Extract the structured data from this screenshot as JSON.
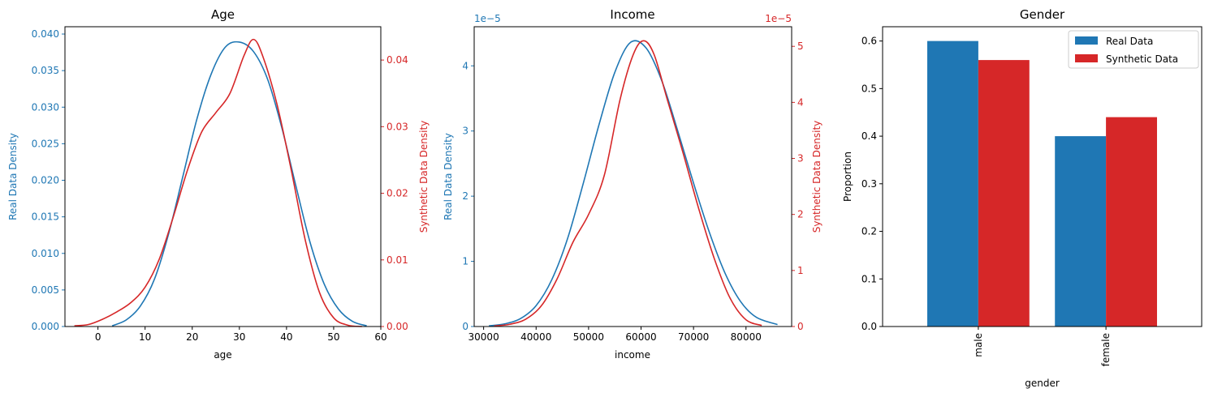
{
  "colors": {
    "real": "#1f77b4",
    "synthetic": "#d62728",
    "axis": "#000000"
  },
  "chart_data": [
    {
      "type": "line",
      "title": "Age",
      "xlabel": "age",
      "ylabel_left": "Real Data Density",
      "ylabel_right": "Synthetic Data Density",
      "xlim": [
        -7,
        60
      ],
      "ylim_left": [
        0,
        0.041
      ],
      "ylim_right": [
        0,
        0.045
      ],
      "xticks": [
        0,
        10,
        20,
        30,
        40,
        50,
        60
      ],
      "xtick_labels": [
        "0",
        "10",
        "20",
        "30",
        "40",
        "50",
        "60"
      ],
      "yticks_left": [
        0,
        0.005,
        0.01,
        0.015,
        0.02,
        0.025,
        0.03,
        0.035,
        0.04
      ],
      "ytick_labels_left": [
        "0.000",
        "0.005",
        "0.010",
        "0.015",
        "0.020",
        "0.025",
        "0.030",
        "0.035",
        "0.040"
      ],
      "yticks_right": [
        0,
        0.01,
        0.02,
        0.03,
        0.04
      ],
      "ytick_labels_right": [
        "0.00",
        "0.01",
        "0.02",
        "0.03",
        "0.04"
      ],
      "series": [
        {
          "name": "Real Data",
          "axis": "left",
          "x": [
            3,
            6,
            9,
            12,
            15,
            18,
            21,
            24,
            27,
            30,
            33,
            36,
            39,
            42,
            45,
            48,
            51,
            54,
            57
          ],
          "y": [
            0.0001,
            0.0009,
            0.0028,
            0.0065,
            0.0127,
            0.0205,
            0.0284,
            0.0345,
            0.0382,
            0.0389,
            0.0376,
            0.0338,
            0.0272,
            0.0192,
            0.0115,
            0.0058,
            0.0024,
            0.0007,
            0.0001
          ]
        },
        {
          "name": "Synthetic Data",
          "axis": "right",
          "x": [
            -5,
            -2,
            1,
            4,
            7,
            10,
            13,
            16,
            19,
            22,
            25,
            28,
            31,
            33,
            35,
            38,
            41,
            44,
            47,
            50,
            53,
            56
          ],
          "y": [
            0.0001,
            0.0003,
            0.0011,
            0.0022,
            0.0036,
            0.0059,
            0.0101,
            0.0165,
            0.0235,
            0.0292,
            0.0321,
            0.035,
            0.0407,
            0.0431,
            0.0405,
            0.0333,
            0.0235,
            0.0129,
            0.0051,
            0.0013,
            0.0002,
            0.0
          ]
        }
      ]
    },
    {
      "type": "line",
      "title": "Income",
      "xlabel": "income",
      "ylabel_left": "Real Data Density",
      "ylabel_right": "Synthetic Data Density",
      "multiplier_left": "1e−5",
      "multiplier_right": "1e−5",
      "xlim": [
        28200,
        88700
      ],
      "ylim_left": [
        0,
        4.6
      ],
      "ylim_right": [
        0,
        5.35
      ],
      "xticks": [
        30000,
        40000,
        50000,
        60000,
        70000,
        80000
      ],
      "xtick_labels": [
        "30000",
        "40000",
        "50000",
        "60000",
        "70000",
        "80000"
      ],
      "yticks_left": [
        0,
        1,
        2,
        3,
        4
      ],
      "ytick_labels_left": [
        "0",
        "1",
        "2",
        "3",
        "4"
      ],
      "yticks_right": [
        0,
        1,
        2,
        3,
        4,
        5
      ],
      "ytick_labels_right": [
        "0",
        "1",
        "2",
        "3",
        "4",
        "5"
      ],
      "series": [
        {
          "name": "Real Data",
          "axis": "left",
          "x": [
            31000,
            34000,
            37000,
            40000,
            43000,
            46000,
            49000,
            52000,
            55000,
            58000,
            61000,
            64000,
            67000,
            70000,
            73000,
            76000,
            79000,
            82000,
            86000
          ],
          "y": [
            0.01,
            0.04,
            0.12,
            0.32,
            0.72,
            1.35,
            2.2,
            3.1,
            3.9,
            4.36,
            4.27,
            3.76,
            3.0,
            2.2,
            1.45,
            0.82,
            0.38,
            0.14,
            0.03
          ]
        },
        {
          "name": "Synthetic Data",
          "axis": "right",
          "x": [
            32000,
            35000,
            38000,
            41000,
            44000,
            47000,
            50000,
            53000,
            56000,
            58500,
            60500,
            62500,
            65000,
            68000,
            71000,
            74000,
            77000,
            80000,
            83000
          ],
          "y": [
            0.01,
            0.04,
            0.13,
            0.37,
            0.85,
            1.5,
            2.0,
            2.7,
            4.05,
            4.85,
            5.1,
            4.85,
            4.05,
            3.1,
            2.1,
            1.2,
            0.5,
            0.12,
            0.02
          ]
        }
      ]
    },
    {
      "type": "bar",
      "title": "Gender",
      "xlabel": "gender",
      "ylabel": "Proportion",
      "categories": [
        "male",
        "female"
      ],
      "ylim": [
        0,
        0.63
      ],
      "yticks": [
        0,
        0.1,
        0.2,
        0.3,
        0.4,
        0.5,
        0.6
      ],
      "ytick_labels": [
        "0.0",
        "0.1",
        "0.2",
        "0.3",
        "0.4",
        "0.5",
        "0.6"
      ],
      "legend_position": "top-right",
      "series": [
        {
          "name": "Real Data",
          "values": [
            0.6,
            0.4
          ]
        },
        {
          "name": "Synthetic Data",
          "values": [
            0.56,
            0.44
          ]
        }
      ]
    }
  ]
}
